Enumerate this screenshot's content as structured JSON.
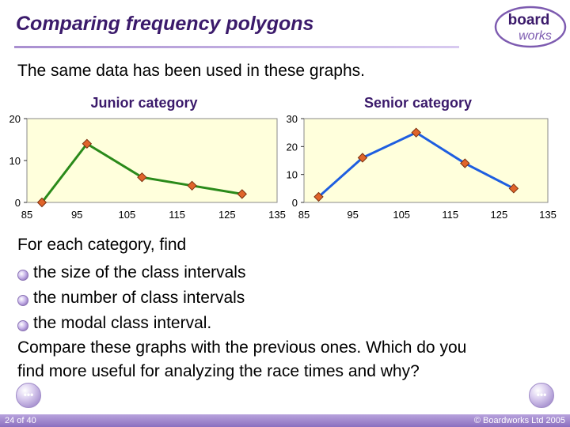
{
  "slide": {
    "title": "Comparing frequency polygons",
    "subtitle": "The same data has been used in these graphs.",
    "logo": {
      "line1": "board",
      "line2": "works"
    }
  },
  "body": {
    "intro": "For each category, find",
    "bullets": [
      "the size of the class intervals",
      "the number of class intervals",
      "the modal class interval."
    ],
    "question_line1": "Compare these graphs with the previous ones. Which do you",
    "question_line2": "find more useful for analyzing the race times and why?"
  },
  "footer": {
    "page": "24 of 40",
    "copyright": "© Boardworks Ltd 2005"
  },
  "colors": {
    "plot_bg": "#ffffdc",
    "junior_line": "#2a8a1a",
    "senior_line": "#1e5ee0",
    "marker": "#e0642a"
  },
  "chart_data": [
    {
      "type": "line",
      "title": "Junior category",
      "x_ticks": [
        "85",
        "95",
        "105",
        "115",
        "125",
        "135"
      ],
      "y_ticks": [
        "0",
        "10",
        "20"
      ],
      "xlim": [
        85,
        135
      ],
      "ylim": [
        0,
        20
      ],
      "grid": false,
      "series": [
        {
          "x": [
            88,
            97,
            108,
            118,
            128
          ],
          "y": [
            0,
            14,
            6,
            4,
            2
          ]
        }
      ]
    },
    {
      "type": "line",
      "title": "Senior category",
      "x_ticks": [
        "85",
        "95",
        "105",
        "115",
        "125",
        "135"
      ],
      "y_ticks": [
        "0",
        "10",
        "20",
        "30"
      ],
      "xlim": [
        85,
        135
      ],
      "ylim": [
        0,
        30
      ],
      "grid": false,
      "series": [
        {
          "x": [
            88,
            97,
            108,
            118,
            128
          ],
          "y": [
            2,
            16,
            25,
            14,
            5
          ]
        }
      ]
    }
  ]
}
